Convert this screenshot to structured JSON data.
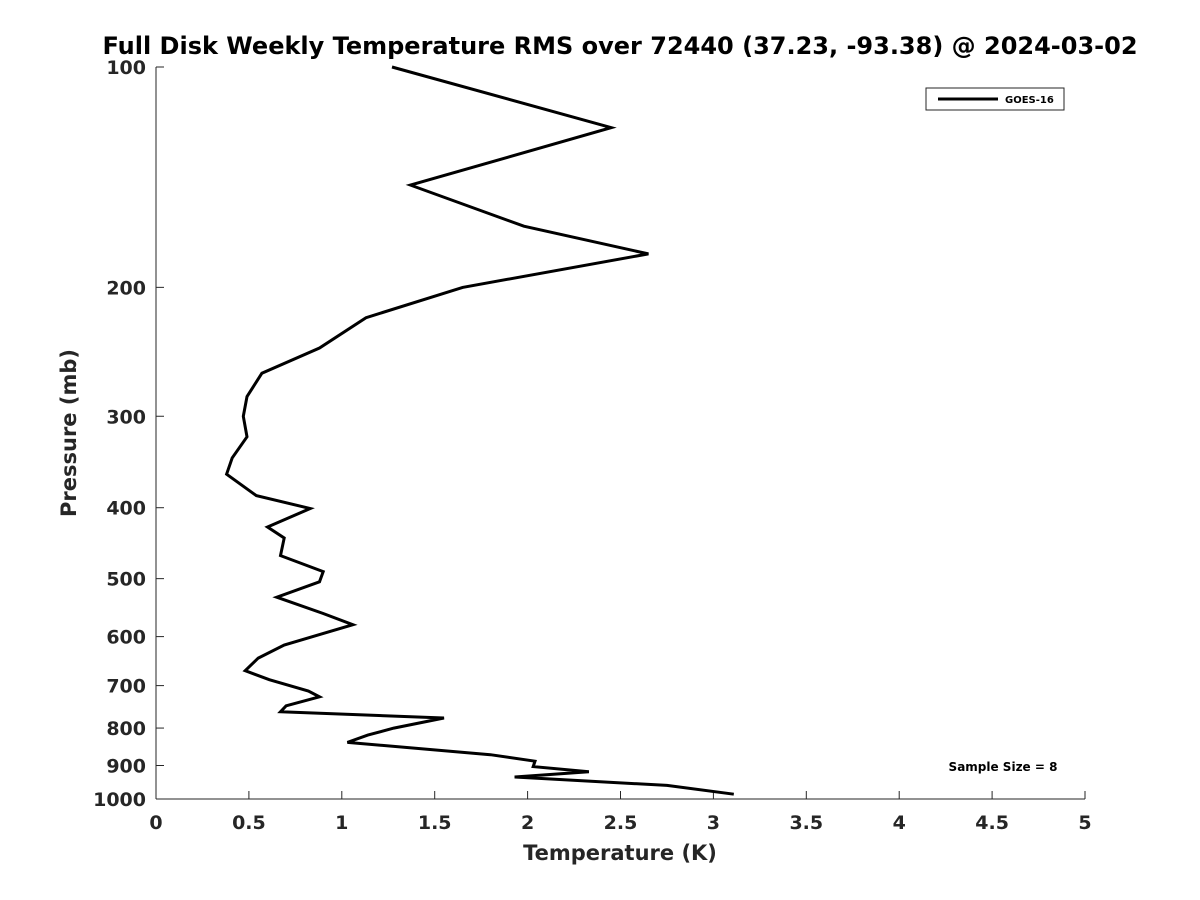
{
  "chart_data": {
    "type": "line",
    "title": "Full Disk Weekly Temperature RMS over 72440 (37.23, -93.38) @ 2024-03-02",
    "xlabel": "Temperature (K)",
    "ylabel": "Pressure (mb)",
    "xlim": [
      0,
      5
    ],
    "ylim": [
      100,
      1000
    ],
    "y_scale": "log",
    "y_reversed": true,
    "grid": false,
    "legend_position": "top-right",
    "x_ticks": [
      "0",
      "0.5",
      "1",
      "1.5",
      "2",
      "2.5",
      "3",
      "3.5",
      "4",
      "4.5",
      "5"
    ],
    "x_tick_values": [
      0,
      0.5,
      1,
      1.5,
      2,
      2.5,
      3,
      3.5,
      4,
      4.5,
      5
    ],
    "y_ticks": [
      "100",
      "200",
      "300",
      "400",
      "500",
      "600",
      "700",
      "800",
      "900",
      "1000"
    ],
    "y_tick_values": [
      100,
      200,
      300,
      400,
      500,
      600,
      700,
      800,
      900,
      1000
    ],
    "series": [
      {
        "name": "GOES-16",
        "color": "#000000",
        "points": [
          [
            1.27,
            100
          ],
          [
            2.45,
            121
          ],
          [
            1.37,
            145
          ],
          [
            1.98,
            165
          ],
          [
            2.65,
            180
          ],
          [
            1.65,
            200
          ],
          [
            1.13,
            220
          ],
          [
            0.88,
            242
          ],
          [
            0.57,
            262
          ],
          [
            0.49,
            282
          ],
          [
            0.47,
            300
          ],
          [
            0.49,
            320
          ],
          [
            0.41,
            342
          ],
          [
            0.38,
            360
          ],
          [
            0.54,
            385
          ],
          [
            0.83,
            401
          ],
          [
            0.6,
            425
          ],
          [
            0.69,
            440
          ],
          [
            0.67,
            465
          ],
          [
            0.9,
            489
          ],
          [
            0.88,
            505
          ],
          [
            0.65,
            530
          ],
          [
            0.9,
            558
          ],
          [
            1.06,
            578
          ],
          [
            0.69,
            616
          ],
          [
            0.55,
            642
          ],
          [
            0.48,
            668
          ],
          [
            0.61,
            687
          ],
          [
            0.82,
            712
          ],
          [
            0.88,
            725
          ],
          [
            0.7,
            746
          ],
          [
            0.67,
            760
          ],
          [
            1.55,
            775
          ],
          [
            1.28,
            800
          ],
          [
            1.14,
            818
          ],
          [
            1.03,
            837
          ],
          [
            1.8,
            870
          ],
          [
            2.04,
            888
          ],
          [
            2.03,
            903
          ],
          [
            2.33,
            918
          ],
          [
            1.93,
            933
          ],
          [
            2.75,
            958
          ],
          [
            3.11,
            985
          ]
        ]
      }
    ],
    "annotation": "Sample Size = 8"
  }
}
